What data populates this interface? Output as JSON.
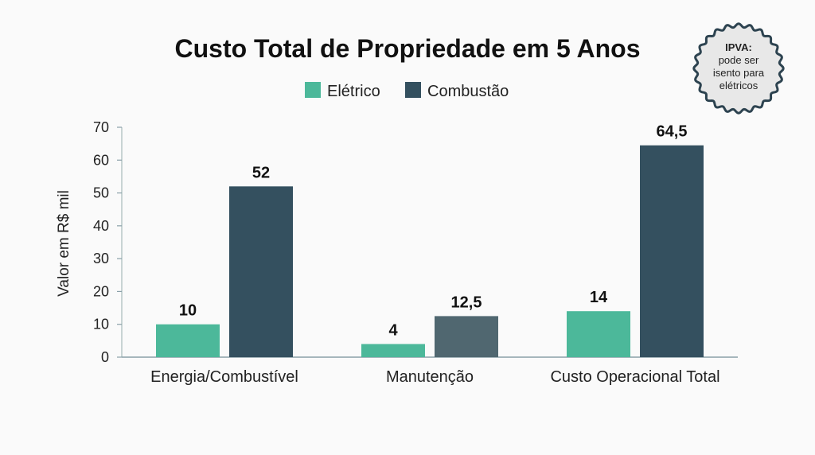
{
  "chart_data": {
    "type": "bar",
    "title": "Custo Total de Propriedade em 5 Anos",
    "ylabel": "Valor em R$ mil",
    "xlabel": "",
    "categories": [
      "Energia/Combustível",
      "Manutenção",
      "Custo Operacional Total"
    ],
    "series": [
      {
        "name": "Elétrico",
        "values": [
          10,
          4,
          14
        ],
        "labels": [
          "10",
          "4",
          "14"
        ],
        "color": "#4cb89a"
      },
      {
        "name": "Combustão",
        "values": [
          52,
          12.5,
          64.5
        ],
        "labels": [
          "52",
          "12,5",
          "64,5"
        ],
        "color": "#34505f"
      }
    ],
    "highlight_color": "#506770",
    "ylim": [
      0,
      70
    ],
    "yticks": [
      0,
      10,
      20,
      30,
      40,
      50,
      60,
      70
    ],
    "grid": false,
    "legend_position": "top-center"
  },
  "badge": {
    "title": "IPVA:",
    "lines": [
      "pode ser",
      "isento para",
      "elétricos"
    ]
  }
}
